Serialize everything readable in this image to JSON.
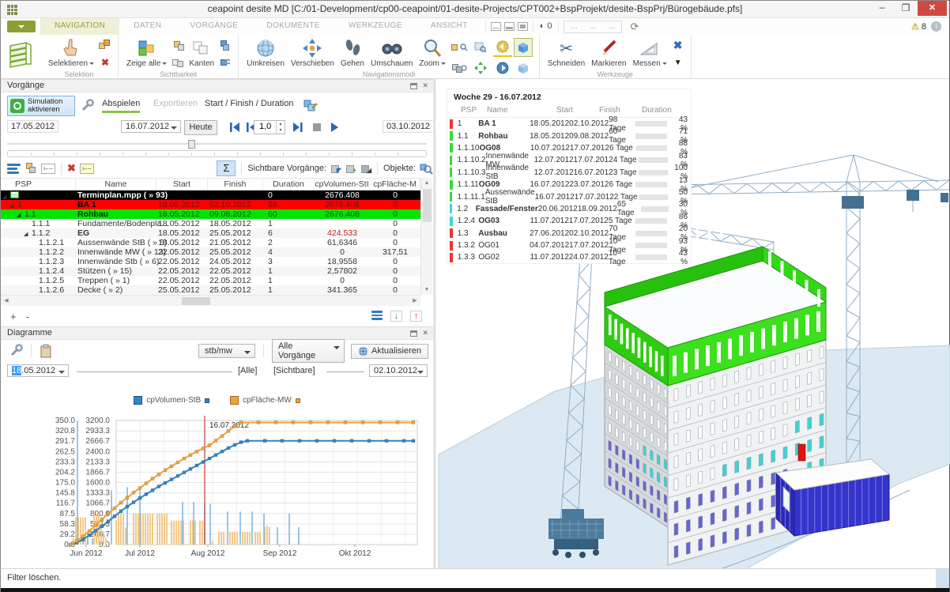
{
  "window": {
    "title": "ceapoint desite MD [C:/01-Development/cp00-ceapoint/01-desite-Projects/CPT002+BspProjekt/desite-BspPrj/Bürogebäude.pfs]",
    "warning_count": "8",
    "minimize": "–",
    "maximize": "❐",
    "close": "✕"
  },
  "tabs": [
    {
      "label": "NAVIGATION",
      "cls": "active"
    },
    {
      "label": "DATEN",
      "cls": ""
    },
    {
      "label": "VORGÄNGE",
      "cls": ""
    },
    {
      "label": "DOKUMENTE",
      "cls": ""
    },
    {
      "label": "WERKZEUGE",
      "cls": ""
    },
    {
      "label": "ANSICHT",
      "cls": ""
    }
  ],
  "tabbar": {
    "indicator_glyph": "◐",
    "indicator_value": "0",
    "dots": "...",
    "sync_glyph": "⟳",
    "warn_glyph": "⚠",
    "info_glyph": "i"
  },
  "ribbon": {
    "selektieren": "Selektieren",
    "zeige_alle": "Zeige alle",
    "kanten": "Kanten",
    "umkreisen": "Umkreisen",
    "verschieben": "Verschieben",
    "gehen": "Gehen",
    "umschauen": "Umschauen",
    "zoom": "Zoom",
    "schneiden": "Schneiden",
    "markieren": "Markieren",
    "messen": "Messen",
    "g_selektion": "Selektion",
    "g_sichtbarkeit": "Sichtbarkeit",
    "g_nav": "Navigationsmodi",
    "g_werkzeuge": "Werkzeuge"
  },
  "vorgaenge": {
    "panel_title": "Vorgänge",
    "sim_line1": "Simulation",
    "sim_line2": "aktivieren",
    "tab_abspielen": "Abspielen",
    "tab_exportieren": "Exportieren",
    "tab_sfd": "Start / Finish / Duration",
    "date_start": "17.05.2012",
    "date_current": "16.07.2012",
    "btn_heute": "Heute",
    "speed": "1,0",
    "date_end": "03.10.2012",
    "sum_sigma": "Σ",
    "lbl_sichtbare": "Sichtbare Vorgänge:",
    "lbl_objekte": "Objekte:",
    "btn_plus": "+",
    "btn_minus": "-",
    "cols": {
      "psp": "PSP",
      "name": "Name",
      "start": "Start",
      "finish": "Finish",
      "duration": "Duration",
      "vol": "cpVolumen-StI",
      "flaeche": "cpFläche-M"
    },
    "rows": [
      {
        "cls": "row-black has-icon",
        "lvl": "lvl0",
        "exp": "◢",
        "psp": "",
        "name": "Terminplan.mpp ( » 93)",
        "ncls": "",
        "start": "",
        "finish": "",
        "dur": "0",
        "vol": "2676.408",
        "vcls": "",
        "fl": "0"
      },
      {
        "cls": "row-red",
        "lvl": "lvl1",
        "exp": "◢",
        "psp": "1",
        "name": "BA 1",
        "ncls": "",
        "start": "18.05.2012",
        "finish": "02.10.2012",
        "dur": "98",
        "vol": "2676.408",
        "vcls": "",
        "fl": "0"
      },
      {
        "cls": "row-green",
        "lvl": "lvl2",
        "exp": "◢",
        "psp": "1.1",
        "name": "Rohbau",
        "ncls": "",
        "start": "18.05.2012",
        "finish": "09.08.2012",
        "dur": "60",
        "vol": "2676.408",
        "vcls": "",
        "fl": "0"
      },
      {
        "cls": "",
        "lvl": "lvl3",
        "exp": "",
        "psp": "1.1.1",
        "name": "Fundamente/Bodenpla...",
        "ncls": "",
        "start": "18.05.2012",
        "finish": "18.05.2012",
        "dur": "1",
        "vol": "",
        "vcls": "",
        "fl": "0"
      },
      {
        "cls": "",
        "lvl": "lvl3",
        "exp": "◢",
        "psp": "1.1.2",
        "name": "EG",
        "ncls": "nb",
        "start": "18.05.2012",
        "finish": "25.05.2012",
        "dur": "6",
        "vol": "424.533",
        "vcls": "vred",
        "fl": "0"
      },
      {
        "cls": "",
        "lvl": "lvl4",
        "exp": "",
        "psp": "1.1.2.1",
        "name": "Aussenwände StB ( » 6)",
        "ncls": "",
        "start": "18.05.2012",
        "finish": "21.05.2012",
        "dur": "2",
        "vol": "61,6346",
        "vcls": "",
        "fl": "0"
      },
      {
        "cls": "",
        "lvl": "lvl4",
        "exp": "",
        "psp": "1.1.2.2",
        "name": "Innenwände MW ( » 13)",
        "ncls": "",
        "start": "22.05.2012",
        "finish": "25.05.2012",
        "dur": "4",
        "vol": "0",
        "vcls": "",
        "fl": "317,51"
      },
      {
        "cls": "",
        "lvl": "lvl4",
        "exp": "",
        "psp": "1.1.2.3",
        "name": "Innenwände Stb ( » 6)",
        "ncls": "",
        "start": "22.05.2012",
        "finish": "24.05.2012",
        "dur": "3",
        "vol": "18,9558",
        "vcls": "",
        "fl": "0"
      },
      {
        "cls": "",
        "lvl": "lvl4",
        "exp": "",
        "psp": "1.1.2.4",
        "name": "Stützen ( » 15)",
        "ncls": "",
        "start": "22.05.2012",
        "finish": "22.05.2012",
        "dur": "1",
        "vol": "2,57802",
        "vcls": "",
        "fl": "0"
      },
      {
        "cls": "",
        "lvl": "lvl4",
        "exp": "",
        "psp": "1.1.2.5",
        "name": "Treppen ( » 1)",
        "ncls": "",
        "start": "22.05.2012",
        "finish": "22.05.2012",
        "dur": "1",
        "vol": "0",
        "vcls": "",
        "fl": "0"
      },
      {
        "cls": "",
        "lvl": "lvl4",
        "exp": "",
        "psp": "1.1.2.6",
        "name": "Decke ( » 2)",
        "ncls": "",
        "start": "25.05.2012",
        "finish": "25.05.2012",
        "dur": "1",
        "vol": "341.365",
        "vcls": "",
        "fl": "0"
      }
    ]
  },
  "diagramme": {
    "panel_title": "Diagramme",
    "combo_type": "stb/mw",
    "combo_scope": "Alle Vorgänge",
    "btn_aktualisieren": "Aktualisieren",
    "date_from_sel": "18",
    "date_from_rest": ".05.2012",
    "lbl_alle": "[Alle]",
    "lbl_sichtbare": "[Sichtbare]",
    "date_to": "02.10.2012"
  },
  "chart_data": {
    "type": "line",
    "legend": [
      {
        "name": "cpVolumen-StB",
        "color": "#2e86c8"
      },
      {
        "name": "cpFläche-MW",
        "color": "#f2a33a"
      }
    ],
    "y_left_ticks": [
      "350.0",
      "320.8",
      "291.7",
      "262.5",
      "233.3",
      "204.2",
      "175.0",
      "145.8",
      "116.7",
      "87.5",
      "58.3",
      "29.2",
      "0.0"
    ],
    "y_right_ticks": [
      "3200.0",
      "2933.3",
      "2666.7",
      "2400.0",
      "2133.3",
      "1866.7",
      "1600.0",
      "1333.3",
      "1066.7",
      "800.0",
      "533.3",
      "266.7",
      "0.0"
    ],
    "y_left_range": [
      0,
      350
    ],
    "y_right_range": [
      0,
      3200
    ],
    "x_labels": [
      {
        "label": "Jun 2012",
        "x": 108
      },
      {
        "label": "Jul 2012",
        "x": 176
      },
      {
        "label": "Aug 2012",
        "x": 262
      },
      {
        "label": "Sep 2012",
        "x": 353
      },
      {
        "label": "Okt 2012",
        "x": 448
      }
    ],
    "marker_line": {
      "label": "16.07.2012",
      "x": 258,
      "color": "#cc5555"
    },
    "plot": {
      "x0": 146,
      "x1": 527,
      "y0": 49,
      "y1": 206
    },
    "series": [
      {
        "name": "cpVolumen-StB",
        "color": "#2e86c8",
        "axis": "right",
        "points": [
          [
            88,
            0
          ],
          [
            96,
            50
          ],
          [
            104,
            130
          ],
          [
            112,
            240
          ],
          [
            120,
            360
          ],
          [
            128,
            470
          ],
          [
            136,
            600
          ],
          [
            144,
            730
          ],
          [
            152,
            860
          ],
          [
            160,
            980
          ],
          [
            168,
            1090
          ],
          [
            176,
            1200
          ],
          [
            184,
            1300
          ],
          [
            192,
            1400
          ],
          [
            200,
            1500
          ],
          [
            208,
            1590
          ],
          [
            216,
            1680
          ],
          [
            224,
            1770
          ],
          [
            232,
            1860
          ],
          [
            240,
            1950
          ],
          [
            248,
            2040
          ],
          [
            256,
            2130
          ],
          [
            264,
            2220
          ],
          [
            272,
            2310
          ],
          [
            280,
            2400
          ],
          [
            288,
            2490
          ],
          [
            296,
            2570
          ],
          [
            304,
            2640
          ],
          [
            312,
            2676
          ],
          [
            334,
            2676
          ],
          [
            356,
            2676
          ],
          [
            378,
            2676
          ],
          [
            400,
            2676
          ],
          [
            422,
            2676
          ],
          [
            444,
            2676
          ],
          [
            466,
            2676
          ],
          [
            488,
            2676
          ],
          [
            510,
            2676
          ],
          [
            522,
            2676
          ]
        ]
      },
      {
        "name": "cpFläche-MW",
        "color": "#f2a33a",
        "axis": "right",
        "points": [
          [
            88,
            0
          ],
          [
            96,
            90
          ],
          [
            104,
            210
          ],
          [
            112,
            350
          ],
          [
            120,
            500
          ],
          [
            128,
            650
          ],
          [
            136,
            800
          ],
          [
            144,
            940
          ],
          [
            152,
            1080
          ],
          [
            160,
            1210
          ],
          [
            168,
            1340
          ],
          [
            176,
            1460
          ],
          [
            184,
            1580
          ],
          [
            192,
            1700
          ],
          [
            200,
            1810
          ],
          [
            208,
            1920
          ],
          [
            216,
            2020
          ],
          [
            224,
            2120
          ],
          [
            232,
            2220
          ],
          [
            240,
            2310
          ],
          [
            248,
            2400
          ],
          [
            256,
            2480
          ],
          [
            264,
            2560
          ],
          [
            272,
            2680
          ],
          [
            280,
            2800
          ],
          [
            288,
            2930
          ],
          [
            296,
            3050
          ],
          [
            304,
            3150
          ],
          [
            326,
            3150
          ],
          [
            348,
            3150
          ],
          [
            370,
            3150
          ],
          [
            392,
            3150
          ],
          [
            414,
            3150
          ],
          [
            436,
            3150
          ],
          [
            458,
            3150
          ],
          [
            480,
            3150
          ],
          [
            502,
            3150
          ],
          [
            522,
            3150
          ]
        ]
      }
    ],
    "bars": {
      "color": "#f3c98b",
      "items": [
        [
          92,
          170
        ],
        [
          95,
          700
        ],
        [
          98,
          700
        ],
        [
          101,
          700
        ],
        [
          104,
          700
        ],
        [
          107,
          700
        ],
        [
          110,
          330
        ],
        [
          118,
          800
        ],
        [
          121,
          800
        ],
        [
          124,
          800
        ],
        [
          127,
          560
        ],
        [
          130,
          330
        ],
        [
          133,
          170
        ],
        [
          146,
          620
        ],
        [
          149,
          800
        ],
        [
          152,
          800
        ],
        [
          155,
          800
        ],
        [
          158,
          440
        ],
        [
          168,
          800
        ],
        [
          171,
          800
        ],
        [
          174,
          800
        ],
        [
          177,
          800
        ],
        [
          180,
          800
        ],
        [
          183,
          800
        ],
        [
          186,
          800
        ],
        [
          189,
          800
        ],
        [
          192,
          800
        ],
        [
          198,
          800
        ],
        [
          201,
          800
        ],
        [
          204,
          800
        ],
        [
          207,
          800
        ],
        [
          210,
          800
        ],
        [
          216,
          620
        ],
        [
          219,
          620
        ],
        [
          222,
          620
        ],
        [
          225,
          620
        ],
        [
          228,
          620
        ],
        [
          231,
          620
        ],
        [
          240,
          620
        ],
        [
          243,
          620
        ],
        [
          246,
          620
        ],
        [
          252,
          620
        ],
        [
          255,
          620
        ],
        [
          258,
          620
        ],
        [
          268,
          100
        ],
        [
          276,
          330
        ],
        [
          279,
          330
        ],
        [
          282,
          330
        ],
        [
          290,
          330
        ],
        [
          293,
          330
        ],
        [
          296,
          330
        ],
        [
          299,
          330
        ],
        [
          306,
          330
        ],
        [
          309,
          330
        ],
        [
          312,
          330
        ],
        [
          315,
          330
        ],
        [
          322,
          330
        ],
        [
          325,
          330
        ],
        [
          328,
          330
        ],
        [
          334,
          460
        ],
        [
          337,
          500
        ],
        [
          340,
          460
        ]
      ]
    },
    "spikes": {
      "color": "#78b4dd",
      "items": [
        [
          97,
          3200
        ],
        [
          104,
          180
        ],
        [
          110,
          160
        ],
        [
          116,
          160
        ],
        [
          140,
          1400
        ],
        [
          160,
          1480
        ],
        [
          176,
          1450
        ],
        [
          230,
          1100
        ],
        [
          244,
          1100
        ],
        [
          258,
          1050
        ],
        [
          265,
          1050
        ],
        [
          287,
          850
        ],
        [
          303,
          850
        ],
        [
          318,
          850
        ],
        [
          333,
          800
        ],
        [
          350,
          450
        ],
        [
          365,
          800
        ],
        [
          377,
          450
        ]
      ]
    }
  },
  "viewport": {
    "overlay": {
      "title": "Woche 29 - 16.07.2012",
      "cols": {
        "psp": "PSP",
        "name": "Name",
        "start": "Start",
        "finish": "Finish",
        "duration": "Duration"
      },
      "rows": [
        {
          "chip": "#ee3333",
          "psp": "1",
          "name": "BA 1",
          "ncls": "nb",
          "start": "18.05.2012",
          "finish": "02.10.2012",
          "dur": "98 Tage",
          "pct": 43,
          "pctl": "43 %"
        },
        {
          "chip": "#33dd33",
          "psp": "1.1",
          "name": "Rohbau",
          "ncls": "nb",
          "start": "18.05.2012",
          "finish": "09.08.2012",
          "dur": "60 Tage",
          "pct": 71,
          "pctl": "71 %"
        },
        {
          "chip": "#33dd33",
          "psp": "1.1.10",
          "name": "OG08",
          "ncls": "nb",
          "start": "10.07.2012",
          "finish": "17.07.2012",
          "dur": "6 Tage",
          "pct": 88,
          "pctl": "88 %"
        },
        {
          "chip": "#33dd33",
          "psp": "1.1.10.2",
          "name": "Innenwände MW",
          "ncls": "",
          "start": "12.07.2012",
          "finish": "17.07.2012",
          "dur": "4 Tage",
          "pct": 83,
          "pctl": "83 %"
        },
        {
          "chip": "#33dd33",
          "psp": "1.1.10.3",
          "name": "Innenwände StB",
          "ncls": "",
          "start": "12.07.2012",
          "finish": "16.07.2012",
          "dur": "3 Tage",
          "pct": 100,
          "pctl": "100 %"
        },
        {
          "chip": "#33dd33",
          "psp": "1.1.11",
          "name": "OG09",
          "ncls": "nb",
          "start": "16.07.2012",
          "finish": "23.07.2012",
          "dur": "6 Tage",
          "pct": 13,
          "pctl": "13 %"
        },
        {
          "chip": "#33dd33",
          "psp": "1.1.11.1",
          "name": "Aussenwände StB",
          "ncls": "",
          "start": "16.07.2012",
          "finish": "17.07.2012",
          "dur": "2 Tage",
          "pct": 50,
          "pctl": "50 %"
        },
        {
          "chip": "#33dddd",
          "psp": "1.2",
          "name": "Fassade/Fenster",
          "ncls": "nb",
          "start": "20.06.2012",
          "finish": "18.09.2012",
          "dur": "65 Tage",
          "pct": 30,
          "pctl": "30 %"
        },
        {
          "chip": "#33dddd",
          "psp": "1.2.4",
          "name": "OG03",
          "ncls": "nb",
          "start": "11.07.2012",
          "finish": "17.07.2012",
          "dur": "5 Tage",
          "pct": 86,
          "pctl": "86 %"
        },
        {
          "chip": "#ee3333",
          "psp": "1.3",
          "name": "Ausbau",
          "ncls": "nb",
          "start": "27.06.2012",
          "finish": "02.10.2012",
          "dur": "70 Tage",
          "pct": 20,
          "pctl": "20 %"
        },
        {
          "chip": "#ee3333",
          "psp": "1.3.2",
          "name": "OG01",
          "ncls": "",
          "start": "04.07.2012",
          "finish": "17.07.2012",
          "dur": "10 Tage",
          "pct": 93,
          "pctl": "93 %"
        },
        {
          "chip": "#ee3333",
          "psp": "1.3.3",
          "name": "OG02",
          "ncls": "",
          "start": "11.07.2012",
          "finish": "24.07.2012",
          "dur": "10 Tage",
          "pct": 43,
          "pctl": "43 %"
        }
      ]
    }
  },
  "scene_colors": {
    "ground": "#dcE9f3",
    "facade_left": "#d7dadd",
    "facade_right": "#f0f2f3",
    "green_build": "#2ecc10",
    "green_build_light": "#3ce01c",
    "window_white": "#fdfdfd",
    "window_cyan": "#3ed2d4",
    "window_purple": "#6466d2",
    "window_red": "#e01212",
    "annex_blue": "#3535cc",
    "crane_steel": "#93adc2",
    "crane_dark": "#44718f"
  },
  "statusbar": {
    "text": "Filter löschen."
  }
}
